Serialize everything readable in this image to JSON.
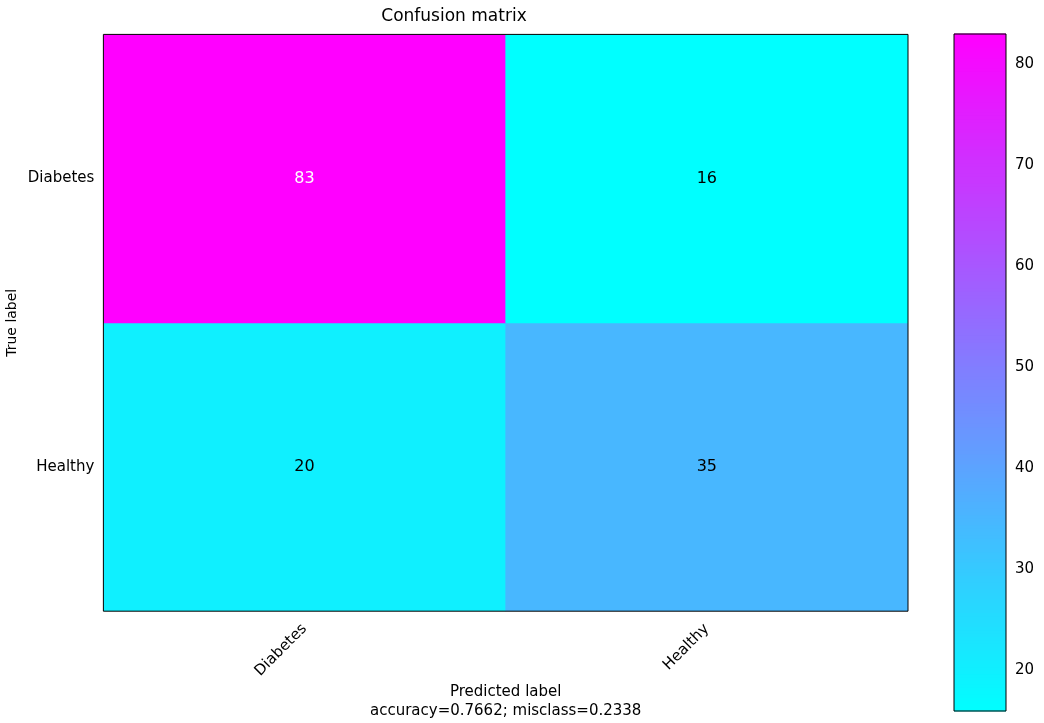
{
  "chart_data": {
    "type": "heatmap",
    "title": "Confusion matrix",
    "xlabel": "Predicted label",
    "ylabel": "True label",
    "annotations": [
      "accuracy=0.7662; misclass=0.2338"
    ],
    "categories": [
      "Diabetes",
      "Healthy"
    ],
    "y_categories": [
      "Diabetes",
      "Healthy"
    ],
    "cells": [
      [
        83,
        16
      ],
      [
        20,
        35
      ]
    ],
    "clim": [
      16,
      83
    ],
    "cticks": [
      20,
      30,
      40,
      50,
      60,
      70,
      80
    ],
    "data_labels": true
  }
}
